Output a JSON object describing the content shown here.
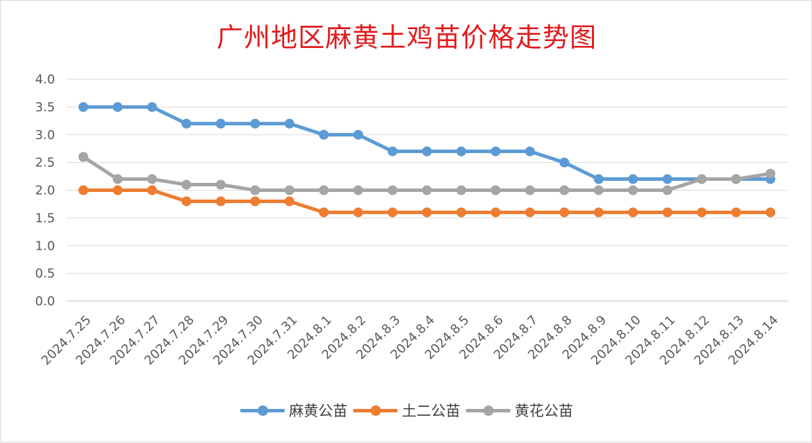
{
  "chart_data": {
    "type": "line",
    "title": "广州地区麻黄土鸡苗价格走势图",
    "xlabel": "",
    "ylabel": "",
    "categories": [
      "2024.7.25",
      "2024.7.26",
      "2024.7.27",
      "2024.7.28",
      "2024.7.29",
      "2024.7.30",
      "2024.7.31",
      "2024.8.1",
      "2024.8.2",
      "2024.8.3",
      "2024.8.4",
      "2024.8.5",
      "2024.8.6",
      "2024.8.7",
      "2024.8.8",
      "2024.8.9",
      "2024.8.10",
      "2024.8.11",
      "2024.8.12",
      "2024.8.13",
      "2024.8.14"
    ],
    "ylim": [
      0,
      4.0
    ],
    "yticks": [
      "0.0",
      "0.5",
      "1.0",
      "1.5",
      "2.0",
      "2.5",
      "3.0",
      "3.5",
      "4.0"
    ],
    "grid": true,
    "legend_position": "bottom",
    "series": [
      {
        "name": "麻黄公苗",
        "color": "#5b9bd5",
        "values": [
          3.5,
          3.5,
          3.5,
          3.2,
          3.2,
          3.2,
          3.2,
          3.0,
          3.0,
          2.7,
          2.7,
          2.7,
          2.7,
          2.7,
          2.5,
          2.2,
          2.2,
          2.2,
          2.2,
          2.2,
          2.2
        ]
      },
      {
        "name": "土二公苗",
        "color": "#ed7d31",
        "values": [
          2.0,
          2.0,
          2.0,
          1.8,
          1.8,
          1.8,
          1.8,
          1.6,
          1.6,
          1.6,
          1.6,
          1.6,
          1.6,
          1.6,
          1.6,
          1.6,
          1.6,
          1.6,
          1.6,
          1.6,
          1.6
        ]
      },
      {
        "name": "黄花公苗",
        "color": "#a5a5a5",
        "values": [
          2.6,
          2.2,
          2.2,
          2.1,
          2.1,
          2.0,
          2.0,
          2.0,
          2.0,
          2.0,
          2.0,
          2.0,
          2.0,
          2.0,
          2.0,
          2.0,
          2.0,
          2.0,
          2.2,
          2.2,
          2.3
        ]
      }
    ]
  }
}
